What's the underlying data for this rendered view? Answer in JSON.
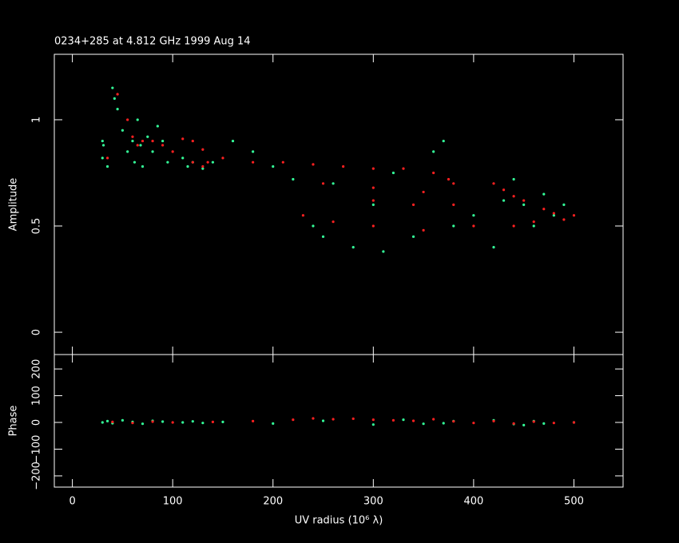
{
  "chart_data": [
    {
      "type": "scatter",
      "title": "0234+285 at 4.812 GHz 1999 Aug 14",
      "ylabel": "Amplitude",
      "xlim": [
        -18,
        549
      ],
      "ylim": [
        -0.105,
        1.308
      ],
      "xticks": [
        0,
        100,
        200,
        300,
        400,
        500
      ],
      "yticks": [
        0,
        0.5,
        1
      ],
      "series": [
        {
          "color": "#33ff99",
          "x": [
            30,
            30,
            31,
            35,
            40,
            42,
            45,
            50,
            55,
            60,
            62,
            65,
            68,
            70,
            75,
            80,
            85,
            90,
            95,
            110,
            115,
            120,
            130,
            140,
            160,
            180,
            200,
            220,
            240,
            250,
            260,
            280,
            300,
            310,
            320,
            340,
            360,
            370,
            380,
            400,
            420,
            430,
            440,
            450,
            460,
            470,
            480,
            490
          ],
          "values": [
            0.82,
            0.9,
            0.88,
            0.78,
            1.15,
            1.1,
            1.05,
            0.95,
            0.85,
            0.9,
            0.8,
            1.0,
            0.88,
            0.78,
            0.92,
            0.85,
            0.97,
            0.9,
            0.8,
            0.82,
            0.78,
            0.8,
            0.77,
            0.8,
            0.9,
            0.85,
            0.78,
            0.72,
            0.5,
            0.45,
            0.7,
            0.4,
            0.6,
            0.38,
            0.75,
            0.45,
            0.85,
            0.9,
            0.5,
            0.55,
            0.4,
            0.62,
            0.72,
            0.6,
            0.5,
            0.65,
            0.55,
            0.6
          ]
        },
        {
          "color": "#ff2020",
          "x": [
            35,
            45,
            55,
            60,
            65,
            70,
            80,
            90,
            100,
            110,
            120,
            130,
            135,
            130,
            120,
            150,
            180,
            210,
            240,
            270,
            300,
            330,
            360,
            375,
            380,
            350,
            300,
            250,
            230,
            260,
            300,
            350,
            400,
            440,
            460,
            480,
            500,
            490,
            470,
            450,
            430,
            420,
            440,
            380,
            340,
            300
          ],
          "values": [
            0.82,
            1.12,
            1.0,
            0.92,
            0.88,
            0.9,
            0.9,
            0.88,
            0.85,
            0.91,
            0.9,
            0.86,
            0.8,
            0.78,
            0.8,
            0.82,
            0.8,
            0.8,
            0.79,
            0.78,
            0.77,
            0.77,
            0.75,
            0.72,
            0.7,
            0.66,
            0.68,
            0.7,
            0.55,
            0.52,
            0.5,
            0.48,
            0.5,
            0.5,
            0.52,
            0.56,
            0.55,
            0.53,
            0.58,
            0.62,
            0.67,
            0.7,
            0.64,
            0.6,
            0.6,
            0.62
          ]
        }
      ]
    },
    {
      "type": "scatter",
      "ylabel": "Phase",
      "xlabel": "UV radius  (10⁶ λ)",
      "xlim": [
        -18,
        549
      ],
      "ylim": [
        -242,
        254
      ],
      "xticks": [
        0,
        100,
        200,
        300,
        400,
        500
      ],
      "yticks": [
        {
          "value": -200,
          "label": "−200"
        },
        {
          "value": -100,
          "label": "−100"
        },
        0,
        100,
        200
      ],
      "series": [
        {
          "color": "#33ff99",
          "x": [
            30,
            35,
            40,
            50,
            60,
            70,
            80,
            90,
            110,
            120,
            130,
            150,
            200,
            250,
            300,
            330,
            350,
            370,
            380,
            420,
            440,
            450,
            460,
            470,
            500
          ],
          "values": [
            0,
            5,
            -3,
            8,
            2,
            -5,
            6,
            3,
            0,
            4,
            -2,
            2,
            -4,
            6,
            -8,
            10,
            -5,
            -3,
            5,
            8,
            -6,
            -10,
            5,
            -4,
            0
          ]
        },
        {
          "color": "#ff2020",
          "x": [
            40,
            60,
            80,
            100,
            140,
            180,
            220,
            240,
            260,
            280,
            300,
            320,
            340,
            360,
            380,
            400,
            420,
            440,
            460,
            480,
            500
          ],
          "values": [
            2,
            -2,
            3,
            0,
            2,
            5,
            10,
            15,
            12,
            14,
            10,
            8,
            6,
            12,
            4,
            -2,
            5,
            -4,
            3,
            -2,
            0
          ]
        }
      ]
    }
  ]
}
